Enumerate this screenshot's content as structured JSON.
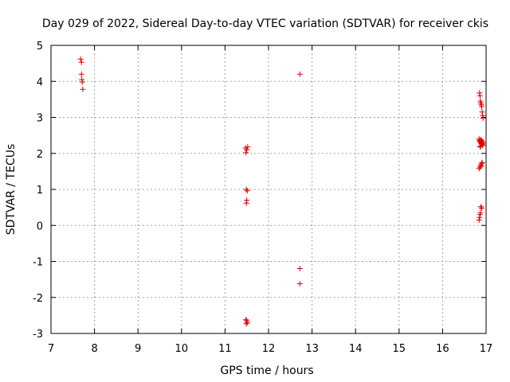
{
  "chart_data": {
    "type": "scatter",
    "title": "Day 029 of 2022, Sidereal Day-to-day VTEC variation (SDTVAR) for receiver ckis",
    "xlabel": "GPS time / hours",
    "ylabel": "SDTVAR / TECUs",
    "xlim": [
      7,
      17
    ],
    "ylim": [
      -3,
      5
    ],
    "xticks": [
      "7",
      "8",
      "9",
      "10",
      "11",
      "12",
      "13",
      "14",
      "15",
      "16",
      "17"
    ],
    "yticks": [
      "-3",
      "-2",
      "-1",
      "0",
      "1",
      "2",
      "3",
      "4",
      "5"
    ],
    "grid": true,
    "marker": "+",
    "color": "#e00000",
    "series": [
      {
        "name": "SDTVAR",
        "points": [
          [
            7.68,
            4.62
          ],
          [
            7.7,
            4.53
          ],
          [
            7.7,
            4.2
          ],
          [
            7.71,
            4.05
          ],
          [
            7.72,
            3.98
          ],
          [
            7.73,
            3.78
          ],
          [
            11.47,
            2.15
          ],
          [
            11.5,
            2.1
          ],
          [
            11.48,
            2.02
          ],
          [
            11.52,
            2.18
          ],
          [
            11.49,
            1.0
          ],
          [
            11.51,
            0.96
          ],
          [
            11.5,
            0.7
          ],
          [
            11.49,
            0.62
          ],
          [
            11.48,
            -2.62
          ],
          [
            11.5,
            -2.65
          ],
          [
            11.51,
            -2.7
          ],
          [
            11.49,
            -2.73
          ],
          [
            12.72,
            4.2
          ],
          [
            12.72,
            -1.2
          ],
          [
            12.72,
            -1.62
          ],
          [
            16.85,
            3.68
          ],
          [
            16.86,
            3.6
          ],
          [
            16.87,
            3.45
          ],
          [
            16.88,
            3.4
          ],
          [
            16.89,
            3.35
          ],
          [
            16.9,
            3.3
          ],
          [
            16.91,
            3.15
          ],
          [
            16.92,
            3.05
          ],
          [
            16.93,
            2.98
          ],
          [
            16.84,
            2.4
          ],
          [
            16.85,
            2.36
          ],
          [
            16.86,
            2.34
          ],
          [
            16.87,
            2.32
          ],
          [
            16.88,
            2.3
          ],
          [
            16.89,
            2.28
          ],
          [
            16.9,
            2.26
          ],
          [
            16.91,
            2.24
          ],
          [
            16.92,
            2.22
          ],
          [
            16.86,
            2.2
          ],
          [
            16.88,
            2.38
          ],
          [
            16.9,
            2.35
          ],
          [
            16.92,
            2.32
          ],
          [
            16.93,
            2.28
          ],
          [
            16.87,
            2.18
          ],
          [
            16.84,
            1.58
          ],
          [
            16.86,
            1.62
          ],
          [
            16.88,
            1.68
          ],
          [
            16.9,
            1.72
          ],
          [
            16.91,
            1.75
          ],
          [
            16.89,
            1.65
          ],
          [
            16.88,
            0.52
          ],
          [
            16.9,
            0.48
          ],
          [
            16.87,
            0.35
          ],
          [
            16.86,
            0.3
          ],
          [
            16.85,
            0.22
          ],
          [
            16.84,
            0.15
          ]
        ]
      }
    ]
  }
}
